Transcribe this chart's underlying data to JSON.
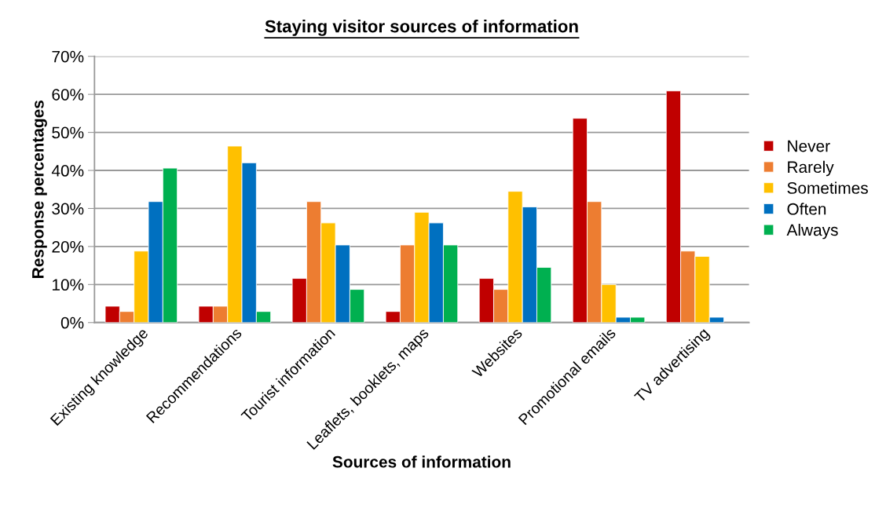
{
  "chart_data": {
    "type": "bar",
    "title": "Staying visitor sources of information",
    "xlabel": "Sources of information",
    "ylabel": "Response percentages",
    "categories": [
      "Existing knowledge",
      "Recommendations",
      "Tourist information",
      "Leaflets, booklets, maps",
      "Websites",
      "Promotional emails",
      "TV advertising"
    ],
    "series": [
      {
        "name": "Never",
        "color": "#c00000",
        "values": [
          4.3,
          4.3,
          11.6,
          2.9,
          11.6,
          53.7,
          60.9
        ]
      },
      {
        "name": "Rarely",
        "color": "#ed7d31",
        "values": [
          2.9,
          4.3,
          31.8,
          20.4,
          8.7,
          31.8,
          18.8
        ]
      },
      {
        "name": "Sometimes",
        "color": "#ffc000",
        "values": [
          18.8,
          46.4,
          26.2,
          29.0,
          34.5,
          10.0,
          17.4
        ]
      },
      {
        "name": "Often",
        "color": "#0070c0",
        "values": [
          31.8,
          42.0,
          20.4,
          26.2,
          30.4,
          1.4,
          1.4
        ]
      },
      {
        "name": "Always",
        "color": "#00b050",
        "values": [
          40.6,
          2.9,
          8.7,
          20.4,
          14.5,
          1.4,
          null
        ]
      }
    ],
    "ylim": [
      0,
      70
    ],
    "yticks": [
      {
        "value": 0,
        "label": "0%"
      },
      {
        "value": 10,
        "label": "10%"
      },
      {
        "value": 20,
        "label": "20%"
      },
      {
        "value": 30,
        "label": "30%"
      },
      {
        "value": 40,
        "label": "40%"
      },
      {
        "value": 50,
        "label": "50%"
      },
      {
        "value": 60,
        "label": "60%"
      },
      {
        "value": 70,
        "label": "70%"
      }
    ],
    "grid": "y",
    "legend": "right"
  }
}
